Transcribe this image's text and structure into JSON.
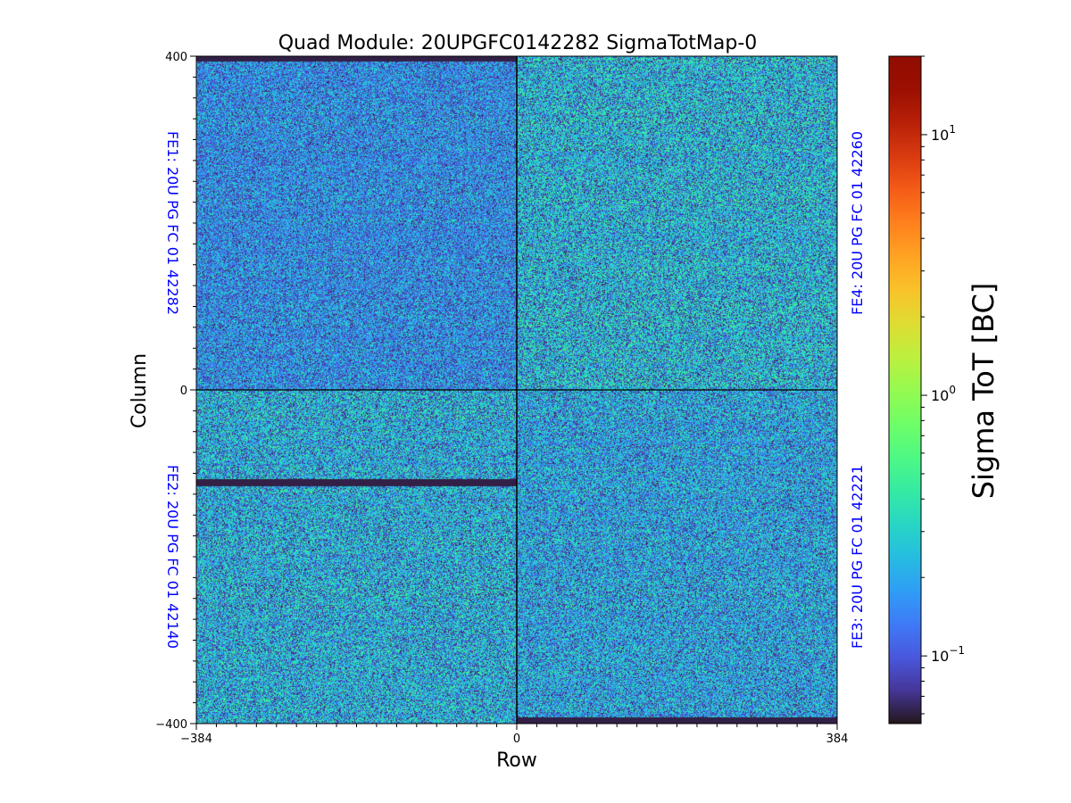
{
  "chart_data": {
    "type": "heatmap",
    "title": "Quad Module: 20UPGFC0142282 SigmaTotMap-0",
    "xlabel": "Row",
    "ylabel": "Column",
    "xlim": [
      -384,
      384
    ],
    "ylim": [
      -400,
      400
    ],
    "x_ticks": [
      "−384",
      "0",
      "384"
    ],
    "y_ticks": [
      "400",
      "0",
      "−400"
    ],
    "grid": false,
    "colormap": "turbo",
    "colorbar": {
      "label": "Sigma ToT [BC]",
      "scale": "log",
      "range": [
        0.055,
        20
      ],
      "ticks": [
        {
          "value": 0.1,
          "base": "10",
          "exp": "−1"
        },
        {
          "value": 1,
          "base": "10",
          "exp": "0"
        },
        {
          "value": 10,
          "base": "10",
          "exp": "1"
        }
      ]
    },
    "front_ends": [
      {
        "label": "FE1: 20U PG FC 01 42282",
        "quadrant": "top-left",
        "typical_sigma": 0.2,
        "dead_rows": [
          {
            "from": 394,
            "to": 400
          }
        ]
      },
      {
        "label": "FE4: 20U PG FC 01 42260",
        "quadrant": "top-right",
        "typical_sigma": 0.3,
        "dead_rows": []
      },
      {
        "label": "FE2: 20U PG FC 01 42140",
        "quadrant": "bottom-left",
        "typical_sigma": 0.28,
        "dead_rows": [
          {
            "from": -115,
            "to": -107
          }
        ]
      },
      {
        "label": "FE3: 20U PG FC 01 42221",
        "quadrant": "bottom-right",
        "typical_sigma": 0.25,
        "dead_rows": [
          {
            "from": -400,
            "to": -393
          }
        ]
      }
    ],
    "dead_value": 0.06,
    "label_color": "#0000ff"
  }
}
